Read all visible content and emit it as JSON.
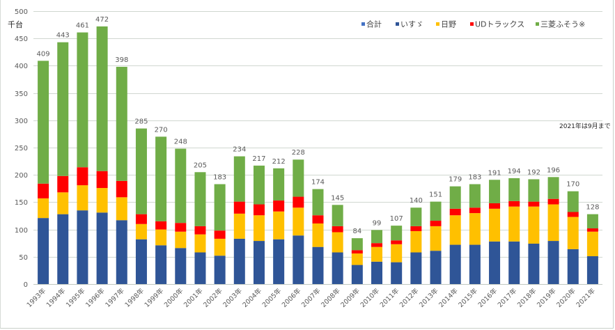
{
  "chart_data": {
    "type": "bar",
    "stacked": true,
    "title": "",
    "ylabel": "千台",
    "xlabel": "",
    "ylim": [
      0,
      500
    ],
    "yticks": [
      0,
      50,
      100,
      150,
      200,
      250,
      300,
      350,
      400,
      450,
      500
    ],
    "grid": true,
    "legend_position": "top-right",
    "annotation": "2021年は9月まで",
    "categories": [
      "1993年",
      "1994年",
      "1995年",
      "1996年",
      "1997年",
      "1998年",
      "1999年",
      "2000年",
      "2001年",
      "2002年",
      "2003年",
      "2004年",
      "2005年",
      "2006年",
      "2007年",
      "2008年",
      "2009年",
      "2010年",
      "2011年",
      "2012年",
      "2013年",
      "2014年",
      "2015年",
      "2016年",
      "2017年",
      "2018年",
      "2019年",
      "2020年",
      "2021年"
    ],
    "totals": [
      409,
      443,
      461,
      472,
      398,
      285,
      270,
      248,
      205,
      183,
      234,
      217,
      212,
      228,
      174,
      145,
      84,
      99,
      107,
      140,
      151,
      179,
      183,
      191,
      194,
      192,
      196,
      170,
      128
    ],
    "legend": [
      {
        "name": "合計",
        "color": "#4472c4"
      },
      {
        "name": "いすゞ",
        "color": "#2f5597"
      },
      {
        "name": "日野",
        "color": "#ffc000"
      },
      {
        "name": "UDトラックス",
        "color": "#ff0000"
      },
      {
        "name": "三菱ふそう※",
        "color": "#70ad47"
      }
    ],
    "series": [
      {
        "name": "いすゞ",
        "color": "#2f5597",
        "values": [
          121,
          128,
          135,
          131,
          117,
          82,
          71,
          66,
          58,
          52,
          83,
          79,
          82,
          89,
          68,
          58,
          35,
          41,
          40,
          58,
          61,
          72,
          72,
          78,
          78,
          74,
          79,
          64,
          51
        ]
      },
      {
        "name": "日野",
        "color": "#ffc000",
        "values": [
          36,
          40,
          46,
          45,
          42,
          28,
          29,
          30,
          33,
          31,
          46,
          47,
          51,
          51,
          43,
          37,
          21,
          27,
          33,
          39,
          45,
          54,
          58,
          60,
          64,
          68,
          67,
          59,
          45
        ]
      },
      {
        "name": "UDトラックス",
        "color": "#ff0000",
        "values": [
          27,
          30,
          33,
          31,
          30,
          18,
          15,
          16,
          15,
          15,
          22,
          20,
          20,
          20,
          15,
          11,
          6,
          7,
          7,
          9,
          10,
          12,
          10,
          10,
          10,
          9,
          10,
          9,
          6
        ]
      },
      {
        "name": "三菱ふそう※",
        "color": "#70ad47",
        "values": [
          225,
          245,
          247,
          265,
          209,
          157,
          155,
          136,
          99,
          85,
          83,
          71,
          59,
          68,
          48,
          39,
          22,
          24,
          27,
          34,
          35,
          41,
          43,
          43,
          42,
          41,
          40,
          38,
          26
        ]
      }
    ]
  }
}
